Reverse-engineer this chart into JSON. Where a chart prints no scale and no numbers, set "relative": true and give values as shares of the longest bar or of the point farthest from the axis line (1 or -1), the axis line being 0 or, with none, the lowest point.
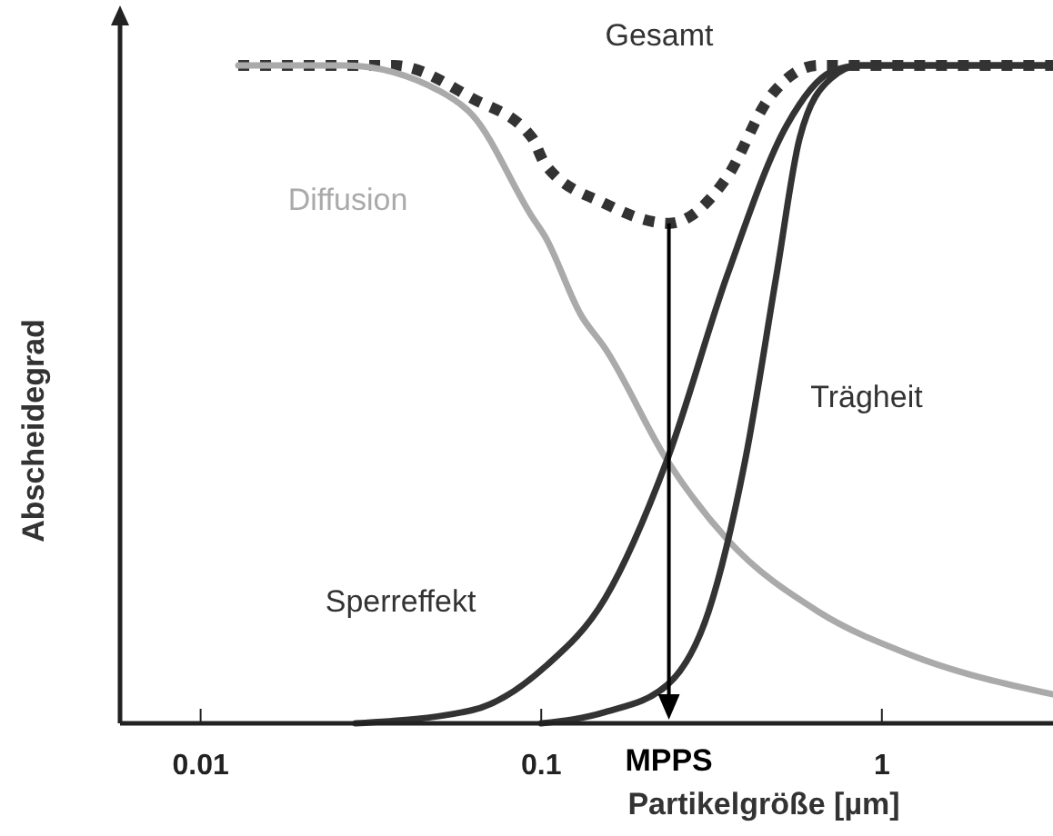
{
  "chart_data": {
    "type": "line",
    "xlabel": "Partikelgröße [µm]",
    "ylabel": "Abscheidegrad",
    "log": "x",
    "relative": true,
    "xlim": [
      0.0058,
      3.18
    ],
    "xticks": [
      0.01,
      0.1,
      1
    ],
    "grid": false,
    "series": [
      {
        "name": "Gesamt",
        "color": "#333333",
        "line_style": "dotted",
        "x": [
          0.0129,
          0.0369,
          0.0627,
          0.094,
          0.1026,
          0.154,
          0.237,
          0.351,
          0.466,
          0.65,
          1.2,
          3.18
        ],
        "values": [
          1.0,
          1.0,
          0.95,
          0.89,
          0.85,
          0.79,
          0.76,
          0.83,
          0.95,
          1.0,
          1.0,
          1.0
        ]
      },
      {
        "name": "Diffusion",
        "color": "#aaaaaa",
        "x": [
          0.0129,
          0.0264,
          0.0508,
          0.0627,
          0.094,
          0.1026,
          0.131,
          0.154,
          0.234,
          0.351,
          0.65,
          1.2,
          3.18
        ],
        "values": [
          1.0,
          1.0,
          0.96,
          0.925,
          0.77,
          0.74,
          0.62,
          0.57,
          0.4,
          0.28,
          0.17,
          0.105,
          0.044
        ]
      },
      {
        "name": "Sperreffekt",
        "color": "#333333",
        "x": [
          0.0285,
          0.0627,
          0.1026,
          0.154,
          0.234,
          0.351,
          0.527,
          0.708,
          0.863,
          3.18
        ],
        "values": [
          0,
          0.02,
          0.086,
          0.19,
          0.4,
          0.68,
          0.91,
          0.99,
          1.0,
          1.0
        ]
      },
      {
        "name": "Trägheit",
        "color": "#333333",
        "x": [
          0.1,
          0.154,
          0.234,
          0.31,
          0.397,
          0.49,
          0.574,
          0.708,
          0.863,
          3.18
        ],
        "values": [
          0,
          0.017,
          0.058,
          0.17,
          0.4,
          0.68,
          0.89,
          0.98,
          1.0,
          1.0
        ]
      }
    ],
    "ref_lines": [
      {
        "axis": "x",
        "value": 0.237,
        "label": "MPPS",
        "color": "#000000"
      }
    ]
  }
}
